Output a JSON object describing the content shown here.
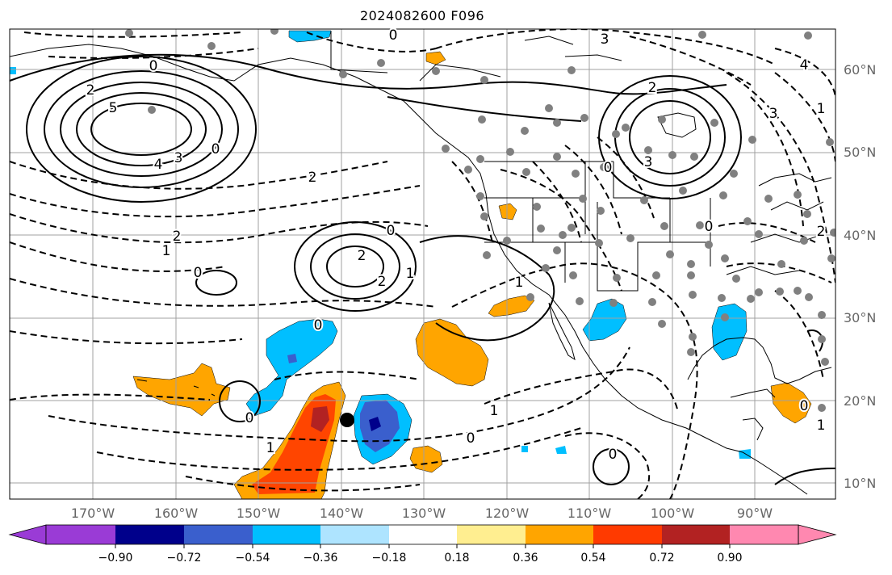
{
  "title": "2024082600 F096",
  "lat_labels": [
    "60°N",
    "50°N",
    "40°N",
    "30°N",
    "20°N",
    "10°N"
  ],
  "lon_labels": [
    "170°W",
    "160°W",
    "150°W",
    "140°W",
    "130°W",
    "120°W",
    "110°W",
    "100°W",
    "90°W"
  ],
  "colorbar": {
    "ticks": [
      "−0.90",
      "−0.72",
      "−0.54",
      "−0.36",
      "−0.18",
      "0.18",
      "0.36",
      "0.54",
      "0.72",
      "0.90"
    ],
    "colors": [
      "#9a3bd6",
      "#00008b",
      "#3a5fcd",
      "#00bfff",
      "#aee4ff",
      "#ffffff",
      "#ffee90",
      "#ffa500",
      "#ff3a00",
      "#b22222",
      "#ff88b0"
    ]
  },
  "contour_labels": [
    "0",
    "0",
    "2",
    "5",
    "4",
    "3",
    "0",
    "2",
    "1",
    "2",
    "0",
    "2",
    "2",
    "1",
    "0",
    "0",
    "1",
    "0",
    "3",
    "2",
    "0",
    "3",
    "4",
    "3",
    "1",
    "0",
    "0",
    "1",
    "0",
    "1",
    "0",
    "2",
    "1"
  ],
  "colors": {
    "orange": "#ffa500",
    "red_orange": "#ff4500",
    "dark_red": "#b22222",
    "cyan": "#00bfff",
    "blue": "#3a5fcd",
    "navy": "#00008b",
    "station": "#808080"
  }
}
